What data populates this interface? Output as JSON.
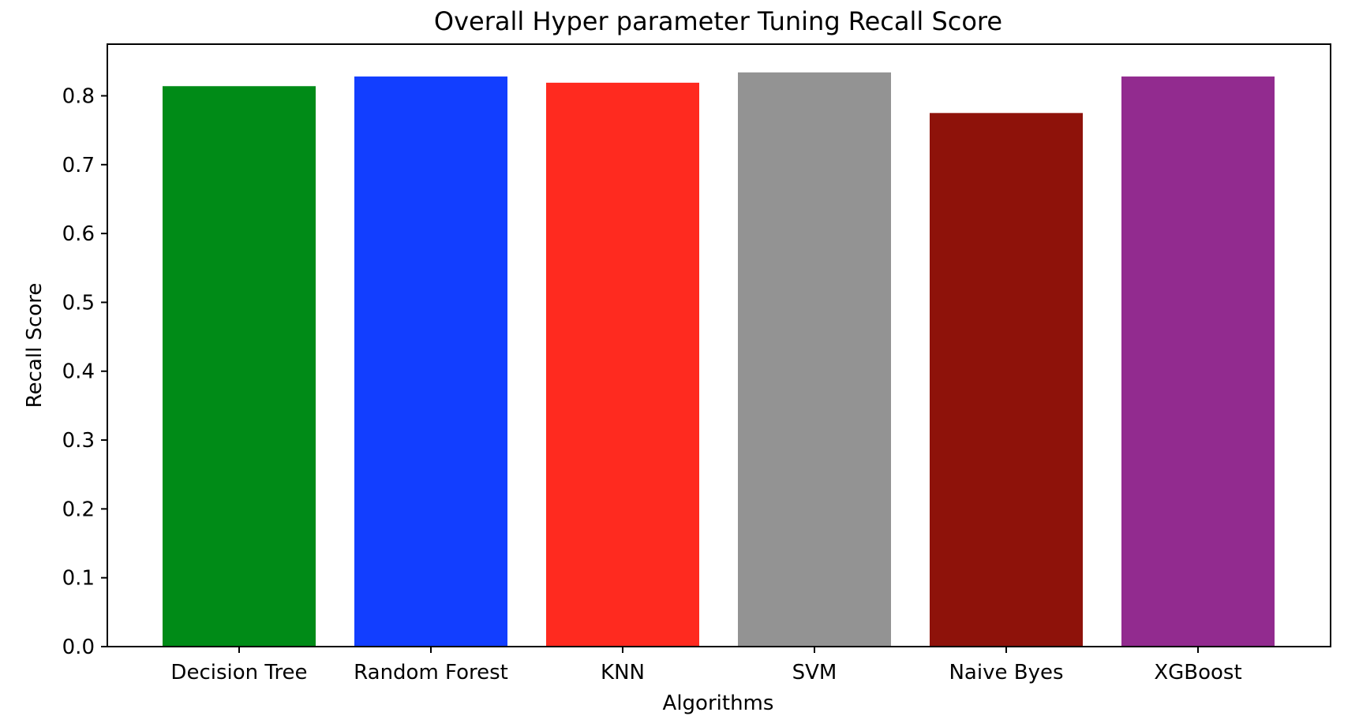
{
  "chart_data": {
    "type": "bar",
    "title": "Overall Hyper parameter Tuning Recall Score",
    "xlabel": "Algorithms",
    "ylabel": "Recall Score",
    "categories": [
      "Decision Tree",
      "Random Forest",
      "KNN",
      "SVM",
      "Naive Byes",
      "XGBoost"
    ],
    "values": [
      0.814,
      0.828,
      0.819,
      0.834,
      0.775,
      0.828
    ],
    "colors": [
      "#008b17",
      "#123eff",
      "#ff2a1f",
      "#939393",
      "#8e120a",
      "#922b8f"
    ],
    "ylim": [
      0,
      0.875
    ],
    "yticks": [
      0.0,
      0.1,
      0.2,
      0.3,
      0.4,
      0.5,
      0.6,
      0.7,
      0.8
    ],
    "ytick_labels": [
      "0.0",
      "0.1",
      "0.2",
      "0.3",
      "0.4",
      "0.5",
      "0.6",
      "0.7",
      "0.8"
    ],
    "grid": false,
    "legend": "none"
  }
}
